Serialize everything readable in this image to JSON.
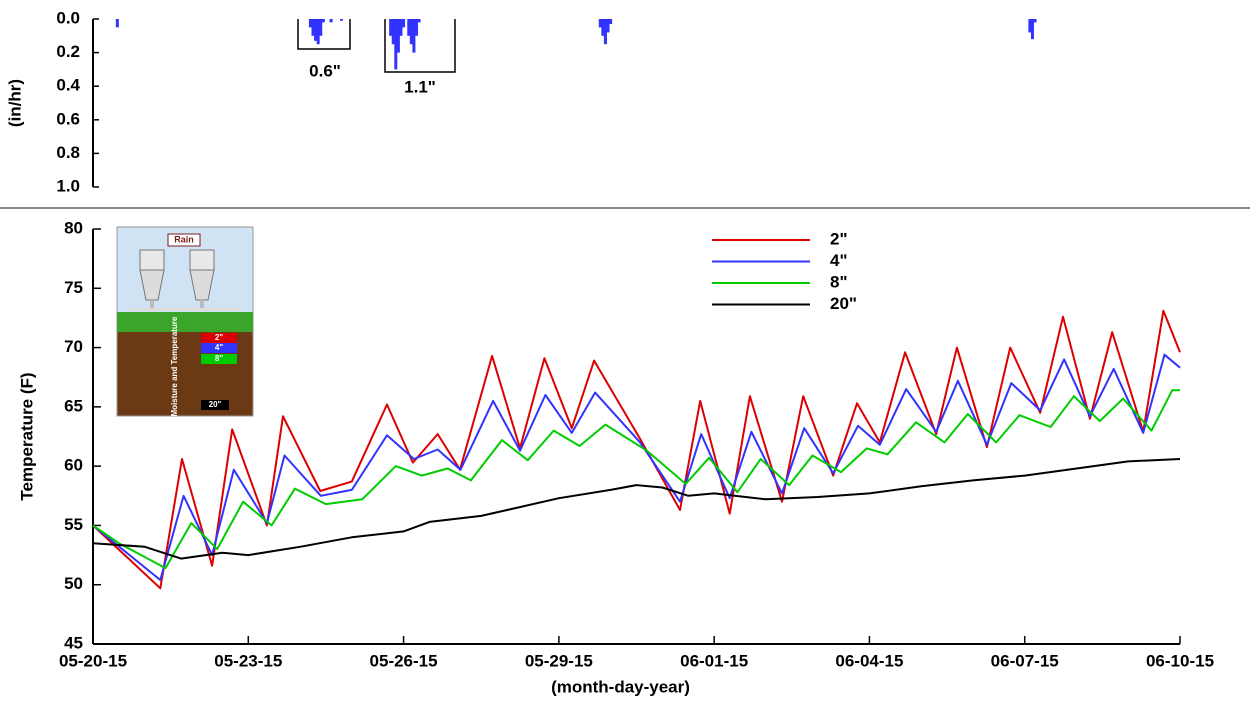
{
  "chart_data": [
    {
      "type": "bar",
      "ylabel": "(in/hr)",
      "color": "#3333ff",
      "inverted": true,
      "xlim": [
        0,
        21
      ],
      "ylim": [
        0,
        1
      ],
      "yticks": [
        {
          "value": 0,
          "label": "0.0"
        },
        {
          "value": 0.2,
          "label": "0.2"
        },
        {
          "value": 0.4,
          "label": "0.4"
        },
        {
          "value": 0.6,
          "label": "0.6"
        },
        {
          "value": 0.8,
          "label": "0.8"
        },
        {
          "value": 1,
          "label": "1.0"
        }
      ],
      "x": [
        0.47,
        4.2,
        4.25,
        4.3,
        4.35,
        4.4,
        4.45,
        4.6,
        4.8,
        5.75,
        5.8,
        5.85,
        5.9,
        5.95,
        6.0,
        6.1,
        6.15,
        6.2,
        6.25,
        6.3,
        9.8,
        9.85,
        9.9,
        9.95,
        10.0,
        18.1,
        18.15,
        18.2
      ],
      "values": [
        0.05,
        0.05,
        0.1,
        0.13,
        0.15,
        0.1,
        0.02,
        0.02,
        0.01,
        0.1,
        0.15,
        0.3,
        0.2,
        0.1,
        0.05,
        0.1,
        0.15,
        0.2,
        0.1,
        0.02,
        0.05,
        0.1,
        0.15,
        0.08,
        0.03,
        0.08,
        0.12,
        0.02
      ],
      "annotations": [
        "0.6\"",
        "1.1\""
      ]
    },
    {
      "type": "line",
      "ylabel": "Temperature (F)",
      "xlabel": "(month-day-year)",
      "legend": "top",
      "xlim": [
        0,
        21
      ],
      "ylim": [
        45,
        80
      ],
      "xticks": [
        {
          "value": 0,
          "label": "05-20-15"
        },
        {
          "value": 3,
          "label": "05-23-15"
        },
        {
          "value": 6,
          "label": "05-26-15"
        },
        {
          "value": 9,
          "label": "05-29-15"
        },
        {
          "value": 12,
          "label": "06-01-15"
        },
        {
          "value": 15,
          "label": "06-04-15"
        },
        {
          "value": 18,
          "label": "06-07-15"
        },
        {
          "value": 21,
          "label": "06-10-15"
        }
      ],
      "yticks": [
        45,
        50,
        55,
        60,
        65,
        70,
        75,
        80
      ],
      "inset": {
        "title": "Rain",
        "label": "Soil Moisture and Temperature",
        "depths": [
          "2\"",
          "4\"",
          "8\"",
          "20\""
        ]
      },
      "series": [
        {
          "name": "2\"",
          "color": "#dd0000",
          "x": [
            0,
            1.3,
            1.72,
            2.3,
            2.69,
            3.36,
            3.67,
            4.39,
            5.0,
            5.68,
            6.18,
            6.66,
            7.09,
            7.71,
            8.25,
            8.72,
            9.25,
            9.68,
            10.57,
            11.34,
            11.73,
            12.3,
            12.69,
            13.31,
            13.72,
            14.3,
            14.76,
            15.2,
            15.69,
            16.29,
            16.69,
            17.27,
            17.72,
            18.3,
            18.74,
            19.26,
            19.69,
            20.29,
            20.68,
            21
          ],
          "values": [
            55,
            49.7,
            60.6,
            51.6,
            63.1,
            55.0,
            64.2,
            57.9,
            58.7,
            65.2,
            60.3,
            62.7,
            59.7,
            69.3,
            61.5,
            69.1,
            63.2,
            68.9,
            62.3,
            56.3,
            65.5,
            56.0,
            65.9,
            57.0,
            65.9,
            59.2,
            65.3,
            62.0,
            69.6,
            62.7,
            70.0,
            61.6,
            70.0,
            64.5,
            72.6,
            64.0,
            71.3,
            62.9,
            73.1,
            69.6
          ]
        },
        {
          "name": "4\"",
          "color": "#3333ff",
          "x": [
            0,
            1.3,
            1.75,
            2.3,
            2.72,
            3.36,
            3.7,
            4.4,
            5.0,
            5.68,
            6.2,
            6.66,
            7.1,
            7.73,
            8.25,
            8.74,
            9.25,
            9.7,
            10.57,
            11.34,
            11.75,
            12.3,
            12.72,
            13.31,
            13.74,
            14.3,
            14.78,
            15.2,
            15.71,
            16.29,
            16.71,
            17.27,
            17.74,
            18.3,
            18.76,
            19.26,
            19.72,
            20.29,
            20.7,
            21
          ],
          "values": [
            55,
            50.4,
            57.5,
            52.5,
            59.7,
            55.2,
            60.9,
            57.5,
            58.0,
            62.6,
            60.6,
            61.4,
            59.7,
            65.5,
            61.3,
            66.0,
            62.8,
            66.2,
            62.0,
            57.0,
            62.7,
            57.3,
            62.9,
            57.7,
            63.2,
            59.4,
            63.4,
            61.8,
            66.5,
            62.9,
            67.2,
            61.8,
            67.0,
            64.7,
            69.0,
            64.2,
            68.2,
            62.8,
            69.4,
            68.3
          ]
        },
        {
          "name": "8\"",
          "color": "#00cc00",
          "x": [
            0,
            0.5,
            1.4,
            1.9,
            2.4,
            2.9,
            3.45,
            3.9,
            4.5,
            5.2,
            5.85,
            6.35,
            6.85,
            7.3,
            7.9,
            8.4,
            8.9,
            9.4,
            9.9,
            10.7,
            11.45,
            11.9,
            12.45,
            12.9,
            13.45,
            13.9,
            14.45,
            14.95,
            15.35,
            15.9,
            16.45,
            16.9,
            17.45,
            17.9,
            18.5,
            18.95,
            19.45,
            19.9,
            20.45,
            20.85,
            21
          ],
          "values": [
            55,
            53.5,
            51.4,
            55.2,
            53.0,
            57.0,
            55.0,
            58.1,
            56.8,
            57.2,
            60.0,
            59.2,
            59.8,
            58.8,
            62.2,
            60.5,
            63.0,
            61.7,
            63.5,
            61.3,
            58.5,
            60.7,
            57.8,
            60.6,
            58.4,
            60.9,
            59.5,
            61.5,
            61.0,
            63.7,
            62.0,
            64.4,
            62.0,
            64.3,
            63.3,
            65.9,
            63.8,
            65.7,
            63.0,
            66.4,
            66.4
          ]
        },
        {
          "name": "20\"",
          "color": "#000000",
          "x": [
            0,
            1,
            1.7,
            2.5,
            3,
            4,
            5,
            6,
            6.5,
            7.5,
            8,
            9,
            10,
            10.5,
            11,
            11.5,
            12,
            13,
            14,
            15,
            16,
            17,
            18,
            19,
            20,
            21
          ],
          "values": [
            53.5,
            53.2,
            52.2,
            52.7,
            52.5,
            53.2,
            54.0,
            54.5,
            55.3,
            55.8,
            56.3,
            57.3,
            58.0,
            58.4,
            58.2,
            57.5,
            57.7,
            57.2,
            57.4,
            57.7,
            58.3,
            58.8,
            59.2,
            59.8,
            60.4,
            60.6
          ]
        }
      ]
    }
  ]
}
